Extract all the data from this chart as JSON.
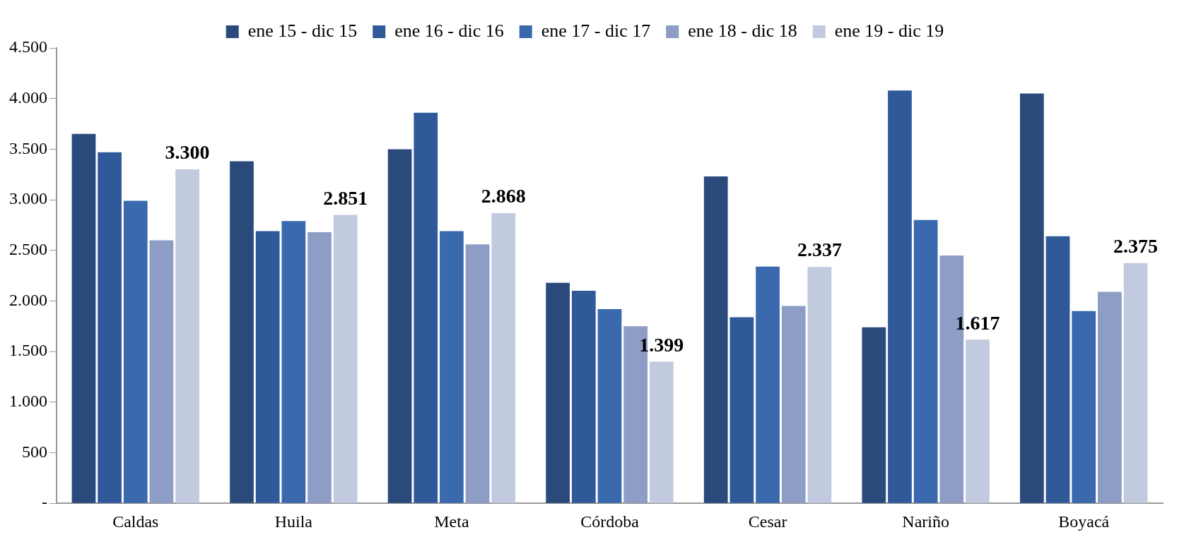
{
  "chart_data": {
    "type": "bar",
    "categories": [
      "Caldas",
      "Huila",
      "Meta",
      "Córdoba",
      "Cesar",
      "Nariño",
      "Boyacá"
    ],
    "series": [
      {
        "name": "ene 15 - dic 15",
        "color": "#2b4a7c",
        "values": [
          3650,
          3380,
          3500,
          2180,
          3230,
          1740,
          4050
        ]
      },
      {
        "name": "ene 16 - dic 16",
        "color": "#30599a",
        "values": [
          3470,
          2690,
          3860,
          2100,
          1840,
          4080,
          2640
        ]
      },
      {
        "name": "ene 17 - dic 17",
        "color": "#3a69ad",
        "values": [
          2990,
          2790,
          2690,
          1920,
          2340,
          2800,
          1900
        ]
      },
      {
        "name": "ene 18 - dic 18",
        "color": "#8e9dc6",
        "values": [
          2600,
          2680,
          2560,
          1750,
          1950,
          2450,
          2090
        ]
      },
      {
        "name": "ene 19 - dic 19",
        "color": "#c2cadf",
        "values": [
          3300,
          2851,
          2868,
          1399,
          2337,
          1617,
          2375
        ],
        "value_labels": [
          "3.300",
          "2.851",
          "2.868",
          "1.399",
          "2.337",
          "1.617",
          "2.375"
        ]
      }
    ],
    "ylim": [
      0,
      4500
    ],
    "yticks": [
      {
        "value": 0,
        "label": "-"
      },
      {
        "value": 500,
        "label": "500"
      },
      {
        "value": 1000,
        "label": "1.000"
      },
      {
        "value": 1500,
        "label": "1.500"
      },
      {
        "value": 2000,
        "label": "2.000"
      },
      {
        "value": 2500,
        "label": "2.500"
      },
      {
        "value": 3000,
        "label": "3.000"
      },
      {
        "value": 3500,
        "label": "3.500"
      },
      {
        "value": 4000,
        "label": "4.000"
      },
      {
        "value": 4500,
        "label": "4.500"
      }
    ],
    "grid": false,
    "legend": "top"
  }
}
